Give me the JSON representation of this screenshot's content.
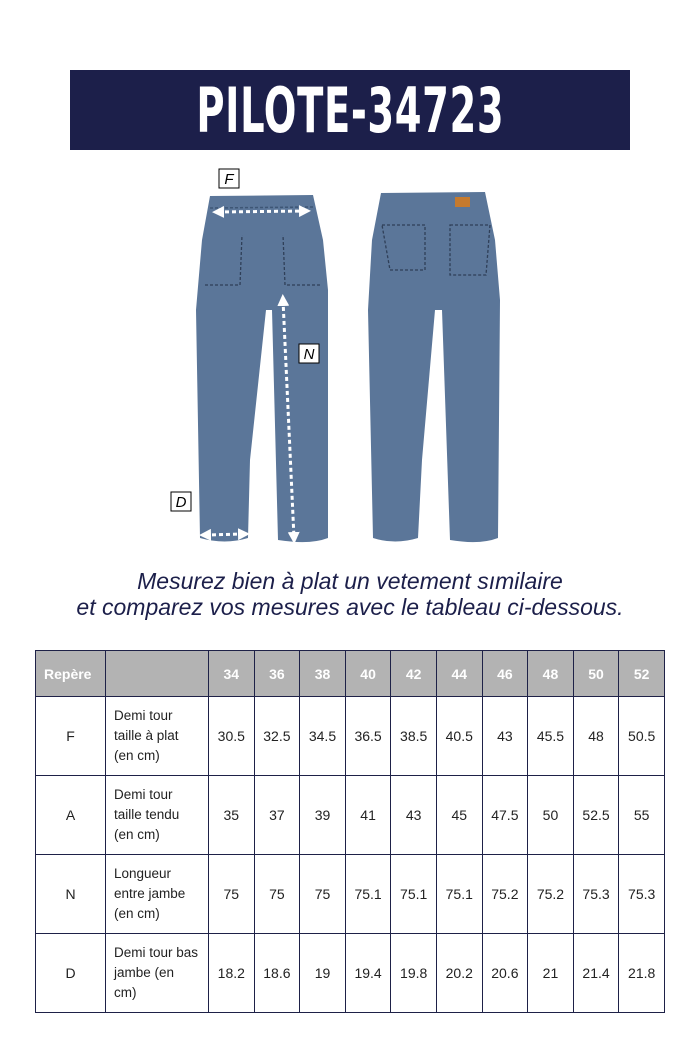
{
  "title": "PILOTE-34723",
  "diagram": {
    "labels": {
      "F": "F",
      "N": "N",
      "D": "D"
    },
    "denim_color": "#5b7699"
  },
  "caption": {
    "line1": "Mesurez bien à plat un vetement sımilaire",
    "line2": "et comparez vos mesures avec le tableau ci-dessous."
  },
  "table": {
    "header_label": "Repère",
    "header_blank": "",
    "sizes": [
      "34",
      "36",
      "38",
      "40",
      "42",
      "44",
      "46",
      "48",
      "50",
      "52"
    ],
    "rows": [
      {
        "repere": "F",
        "description": [
          "Demi tour",
          "taille  à plat",
          "(en cm)"
        ],
        "values": [
          "30.5",
          "32.5",
          "34.5",
          "36.5",
          "38.5",
          "40.5",
          "43",
          "45.5",
          "48",
          "50.5"
        ]
      },
      {
        "repere": "A",
        "description": [
          "Demi tour",
          "taille tendu",
          "(en cm)"
        ],
        "values": [
          "35",
          "37",
          "39",
          "41",
          "43",
          "45",
          "47.5",
          "50",
          "52.5",
          "55"
        ]
      },
      {
        "repere": "N",
        "description": [
          "Longueur",
          "entre jambe",
          "(en cm)"
        ],
        "values": [
          "75",
          "75",
          "75",
          "75.1",
          "75.1",
          "75.1",
          "75.2",
          "75.2",
          "75.3",
          "75.3"
        ]
      },
      {
        "repere": "D",
        "description": [
          "Demi tour bas",
          "jambe (en",
          "cm)"
        ],
        "values": [
          "18.2",
          "18.6",
          "19",
          "19.4",
          "19.8",
          "20.2",
          "20.6",
          "21",
          "21.4",
          "21.8"
        ]
      }
    ]
  }
}
